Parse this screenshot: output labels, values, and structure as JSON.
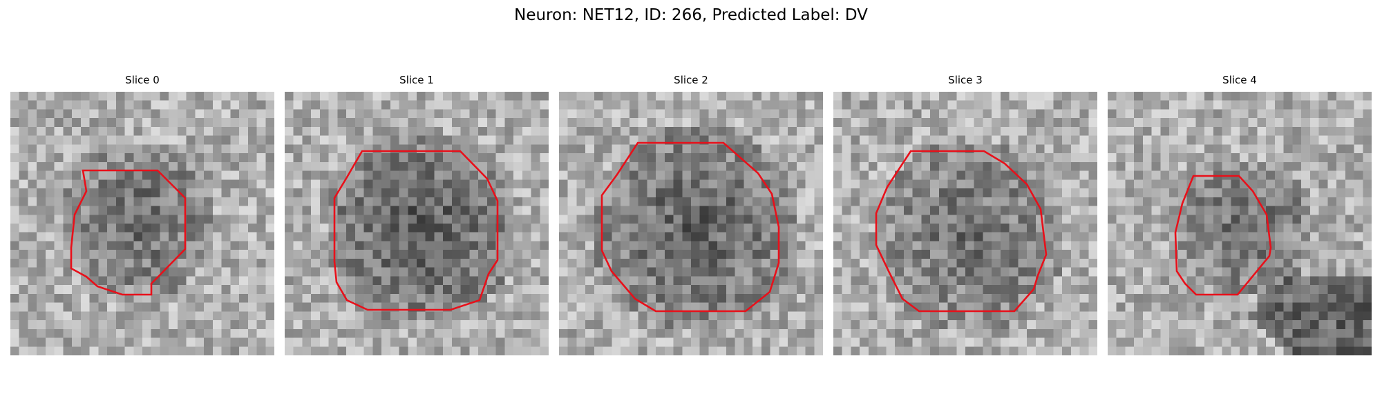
{
  "figure": {
    "suptitle": "Neuron: NET12, ID: 266, Predicted Label: DV",
    "contour_color": "#e8101a"
  },
  "panels": [
    {
      "title": "Slice 0"
    },
    {
      "title": "Slice 1"
    },
    {
      "title": "Slice 2"
    },
    {
      "title": "Slice 3"
    },
    {
      "title": "Slice 4"
    }
  ]
}
